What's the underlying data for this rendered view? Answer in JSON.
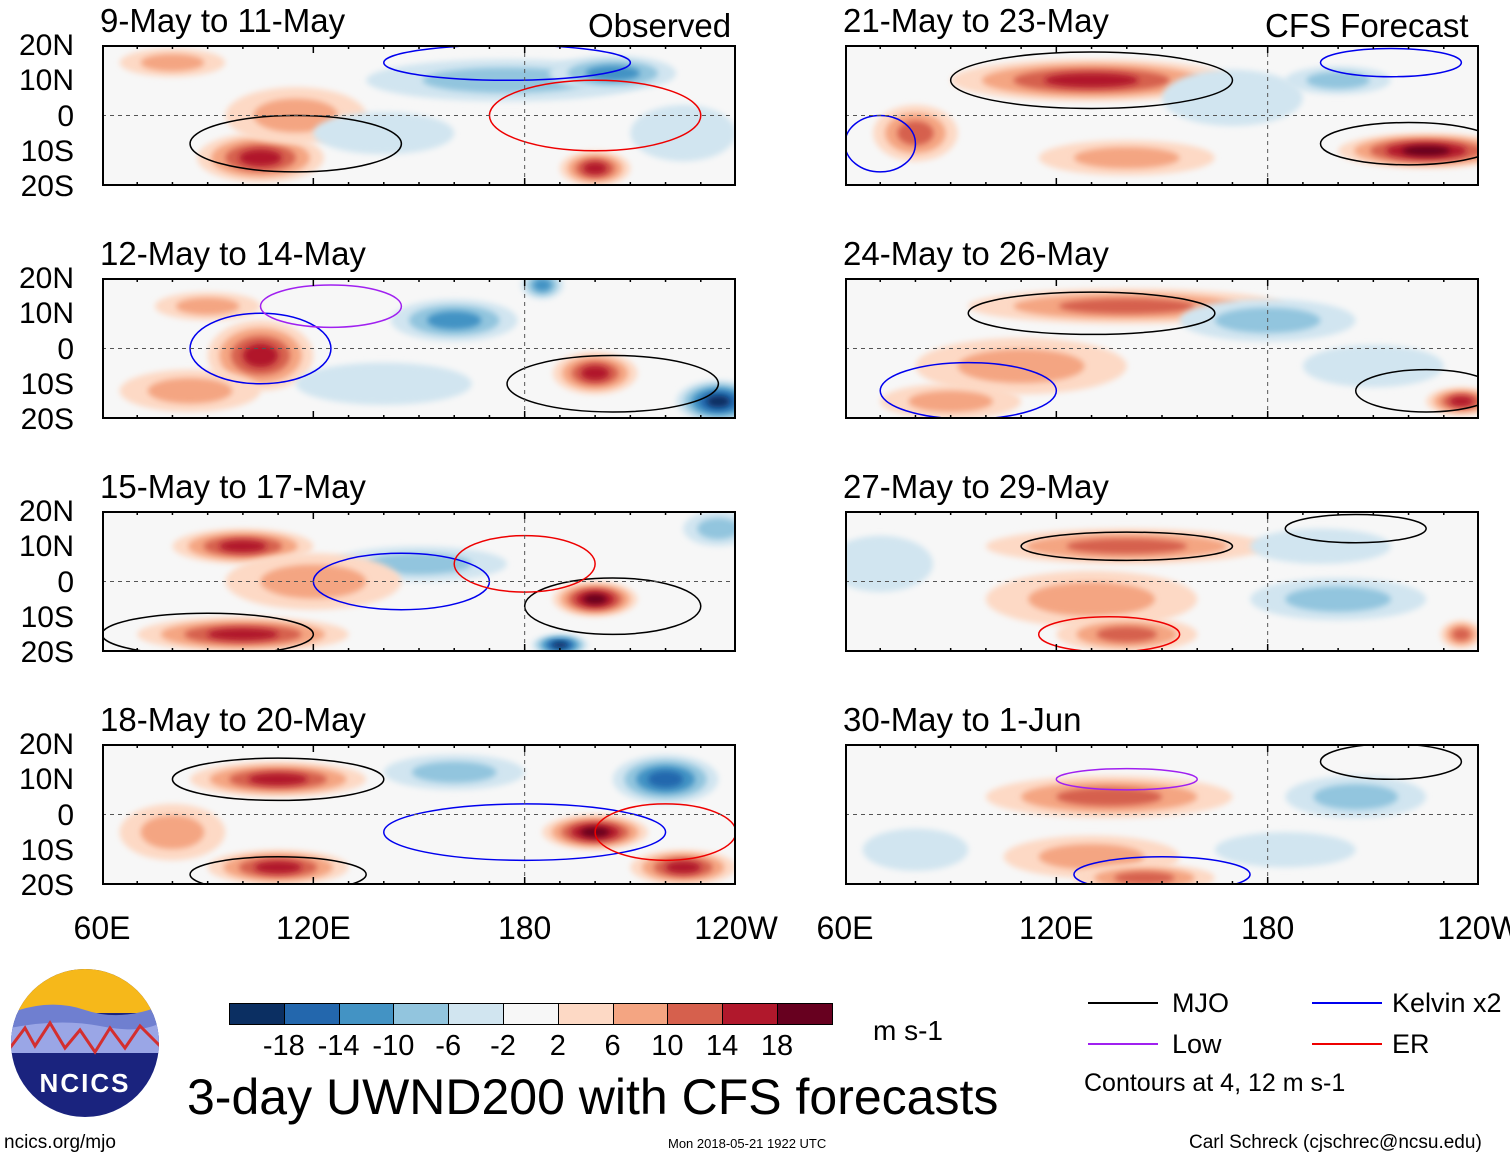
{
  "chart_data": {
    "type": "heatmap",
    "title": "3-day UWND200 with CFS forecasts",
    "units": "m s-1",
    "x_range": [
      60,
      240
    ],
    "y_range": [
      -20,
      20
    ],
    "xticks": [
      "60E",
      "120E",
      "180",
      "120W"
    ],
    "yticks": [
      "20N",
      "10N",
      "0",
      "10S",
      "20S"
    ],
    "column_labels": [
      "Observed",
      "CFS Forecast"
    ],
    "colorbar": {
      "levels": [
        "-18",
        "-14",
        "-10",
        "-6",
        "-2",
        "2",
        "6",
        "10",
        "14",
        "18"
      ],
      "colors": [
        "#0b2f62",
        "#2367ad",
        "#4393c4",
        "#92c5de",
        "#d1e5f0",
        "#f7f7f7",
        "#fdd9c5",
        "#f4a582",
        "#d6604d",
        "#b1182c",
        "#67001f"
      ]
    },
    "contour_legend": {
      "items": [
        {
          "label": "MJO",
          "color": "#000000"
        },
        {
          "label": "Kelvin x2",
          "color": "#0000ee"
        },
        {
          "label": "Low",
          "color": "#a020f0"
        },
        {
          "label": "ER",
          "color": "#ee0000"
        }
      ],
      "note": "Contours at 4, 12 m s-1"
    },
    "panels": [
      {
        "title": "9-May to 11-May",
        "col": 0,
        "row": 0,
        "blobs": [
          [
            105,
            -12,
            16,
            18,
            7
          ],
          [
            115,
            0,
            8,
            20,
            8
          ],
          [
            200,
            -15,
            16,
            10,
            5
          ],
          [
            175,
            10,
            -8,
            40,
            6
          ],
          [
            205,
            12,
            -10,
            18,
            5
          ],
          [
            140,
            -5,
            -4,
            20,
            6
          ],
          [
            80,
            15,
            6,
            15,
            4
          ],
          [
            225,
            -5,
            -4,
            15,
            8
          ]
        ],
        "contours": [
          [
            115,
            -8,
            "MJO",
            30,
            8
          ],
          [
            200,
            0,
            "ER",
            30,
            10
          ],
          [
            175,
            15,
            "Kelvin",
            35,
            5
          ]
        ]
      },
      {
        "title": "12-May to 14-May",
        "col": 0,
        "row": 1,
        "blobs": [
          [
            105,
            -2,
            16,
            15,
            10
          ],
          [
            85,
            -12,
            8,
            20,
            6
          ],
          [
            200,
            -7,
            16,
            12,
            6
          ],
          [
            160,
            8,
            -10,
            18,
            6
          ],
          [
            185,
            18,
            -12,
            6,
            4
          ],
          [
            235,
            -15,
            -18,
            12,
            6
          ],
          [
            140,
            -10,
            -4,
            25,
            6
          ],
          [
            90,
            12,
            6,
            15,
            4
          ]
        ],
        "contours": [
          [
            105,
            0,
            "Kelvin",
            20,
            10
          ],
          [
            205,
            -10,
            "MJO",
            30,
            8
          ],
          [
            125,
            12,
            "Low",
            20,
            6
          ]
        ]
      },
      {
        "title": "15-May to 17-May",
        "col": 0,
        "row": 2,
        "blobs": [
          [
            100,
            10,
            14,
            20,
            5
          ],
          [
            100,
            -15,
            14,
            30,
            5
          ],
          [
            200,
            -5,
            18,
            12,
            5
          ],
          [
            190,
            -18,
            -18,
            8,
            3
          ],
          [
            150,
            5,
            -6,
            25,
            5
          ],
          [
            120,
            0,
            6,
            25,
            8
          ],
          [
            235,
            15,
            -8,
            10,
            5
          ]
        ],
        "contours": [
          [
            90,
            -15,
            "MJO",
            30,
            6
          ],
          [
            205,
            -7,
            "MJO",
            25,
            8
          ],
          [
            145,
            0,
            "Kelvin",
            25,
            8
          ],
          [
            180,
            5,
            "ER",
            20,
            8
          ]
        ]
      },
      {
        "title": "18-May to 20-May",
        "col": 0,
        "row": 3,
        "blobs": [
          [
            110,
            10,
            16,
            25,
            5
          ],
          [
            110,
            -15,
            16,
            20,
            5
          ],
          [
            200,
            -5,
            18,
            15,
            5
          ],
          [
            225,
            -15,
            16,
            15,
            5
          ],
          [
            220,
            10,
            -14,
            15,
            7
          ],
          [
            160,
            12,
            -8,
            20,
            5
          ],
          [
            80,
            -5,
            6,
            15,
            8
          ]
        ],
        "contours": [
          [
            110,
            10,
            "MJO",
            30,
            6
          ],
          [
            180,
            -5,
            "Kelvin",
            40,
            8
          ],
          [
            110,
            -17,
            "MJO",
            25,
            5
          ],
          [
            220,
            -5,
            "ER",
            20,
            8
          ]
        ]
      },
      {
        "title": "21-May to 23-May",
        "col": 1,
        "row": 0,
        "blobs": [
          [
            130,
            10,
            16,
            40,
            6
          ],
          [
            225,
            -10,
            18,
            25,
            5
          ],
          [
            170,
            5,
            -4,
            20,
            8
          ],
          [
            200,
            10,
            -6,
            15,
            4
          ],
          [
            80,
            -5,
            10,
            12,
            8
          ],
          [
            140,
            -12,
            6,
            25,
            5
          ]
        ],
        "contours": [
          [
            130,
            10,
            "MJO",
            40,
            8
          ],
          [
            220,
            -8,
            "MJO",
            25,
            6
          ],
          [
            215,
            15,
            "Kelvin",
            20,
            4
          ],
          [
            70,
            -8,
            "Kelvin",
            10,
            8
          ]
        ]
      },
      {
        "title": "24-May to 26-May",
        "col": 1,
        "row": 1,
        "blobs": [
          [
            140,
            12,
            12,
            45,
            5
          ],
          [
            235,
            -15,
            16,
            10,
            4
          ],
          [
            180,
            8,
            -6,
            25,
            6
          ],
          [
            210,
            -5,
            -4,
            20,
            6
          ],
          [
            110,
            -5,
            6,
            30,
            8
          ],
          [
            90,
            -15,
            6,
            20,
            5
          ]
        ],
        "contours": [
          [
            130,
            10,
            "MJO",
            35,
            6
          ],
          [
            225,
            -12,
            "MJO",
            20,
            6
          ],
          [
            95,
            -12,
            "Kelvin",
            25,
            8
          ]
        ]
      },
      {
        "title": "27-May to 29-May",
        "col": 1,
        "row": 2,
        "blobs": [
          [
            140,
            10,
            12,
            40,
            5
          ],
          [
            130,
            -5,
            8,
            30,
            8
          ],
          [
            140,
            -15,
            10,
            20,
            5
          ],
          [
            70,
            5,
            -4,
            15,
            8
          ],
          [
            200,
            -5,
            -6,
            25,
            6
          ],
          [
            195,
            10,
            -4,
            20,
            5
          ],
          [
            235,
            -15,
            12,
            6,
            4
          ]
        ],
        "contours": [
          [
            140,
            10,
            "MJO",
            30,
            4
          ],
          [
            205,
            15,
            "MJO",
            20,
            4
          ],
          [
            135,
            -15,
            "ER",
            20,
            5
          ]
        ]
      },
      {
        "title": "30-May to 1-Jun",
        "col": 1,
        "row": 3,
        "blobs": [
          [
            135,
            5,
            10,
            35,
            6
          ],
          [
            130,
            -12,
            8,
            25,
            6
          ],
          [
            145,
            -18,
            10,
            20,
            4
          ],
          [
            205,
            5,
            -6,
            20,
            6
          ],
          [
            80,
            -10,
            -4,
            15,
            6
          ],
          [
            185,
            -10,
            -4,
            20,
            5
          ]
        ],
        "contours": [
          [
            215,
            15,
            "MJO",
            20,
            5
          ],
          [
            150,
            -17,
            "Kelvin",
            25,
            5
          ],
          [
            140,
            10,
            "Low",
            20,
            3
          ]
        ]
      }
    ]
  },
  "logo": {
    "text": "NCICS"
  },
  "footer": {
    "url": "ncics.org/mjo",
    "timestamp": "Mon 2018-05-21 1922 UTC",
    "credit": "Carl Schreck (cjschrec@ncsu.edu)"
  }
}
